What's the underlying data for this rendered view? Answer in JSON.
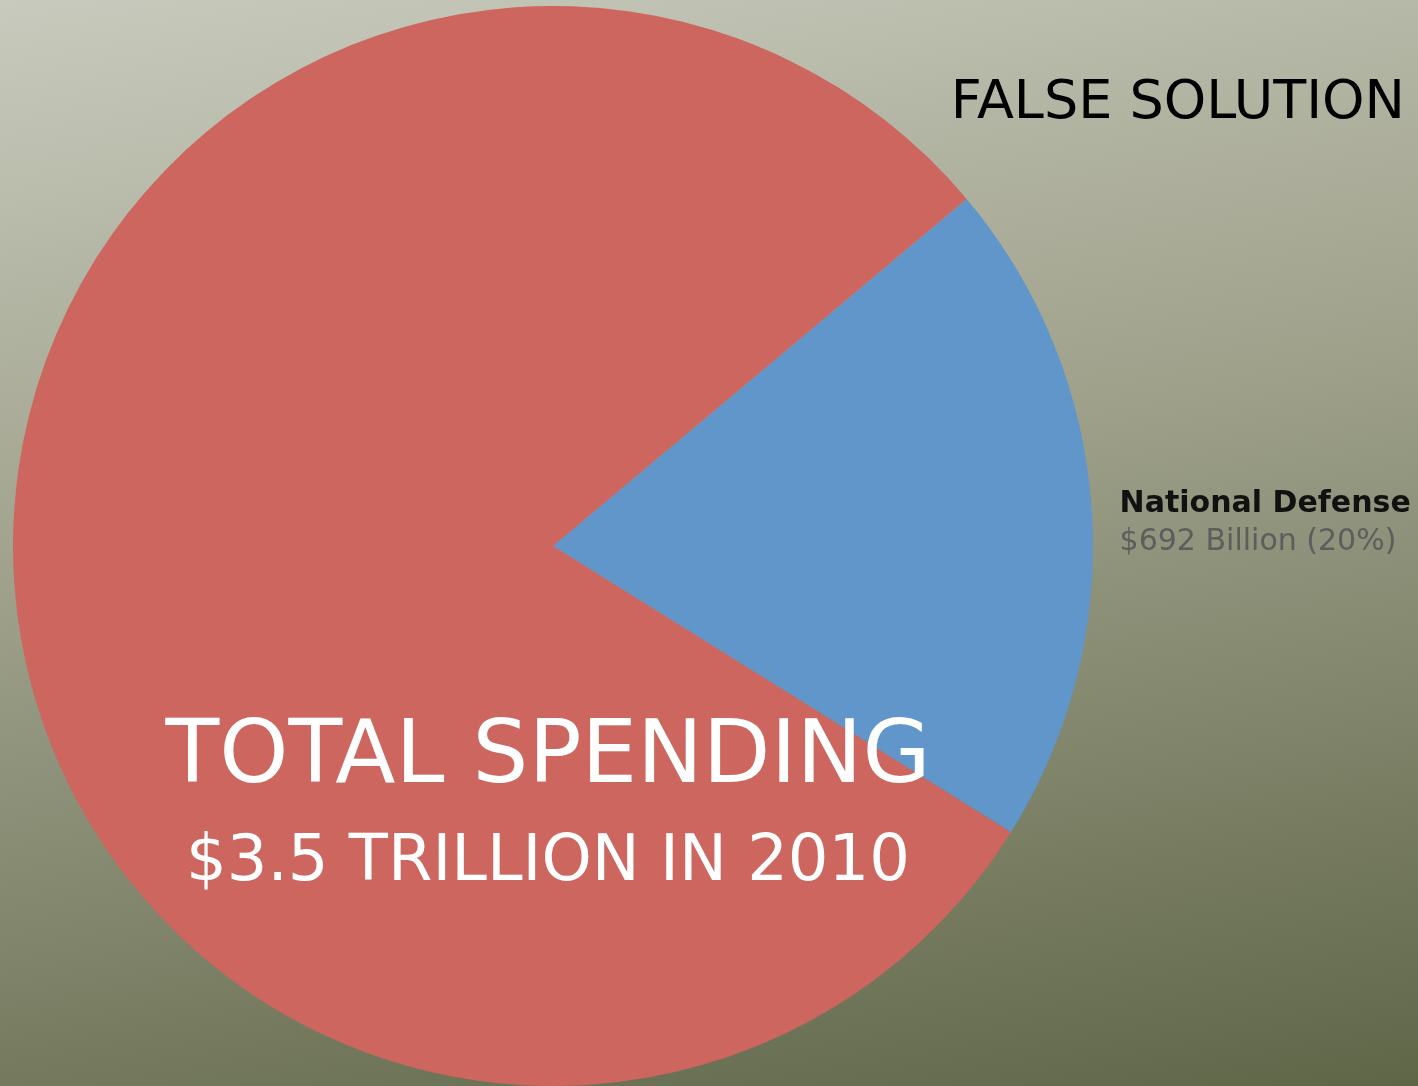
{
  "chart_data": {
    "type": "pie",
    "title": "FALSE SOLUTION",
    "categories": [
      "National Defense",
      null
    ],
    "values": [
      20,
      80
    ],
    "colors": [
      "#6096c9",
      "#cd665f"
    ],
    "value_labels": [
      "$692 Billion (20%)",
      null
    ],
    "annotations": [
      "TOTAL SPENDING",
      "$3.5 TRILLION IN 2010"
    ],
    "legend": false
  }
}
